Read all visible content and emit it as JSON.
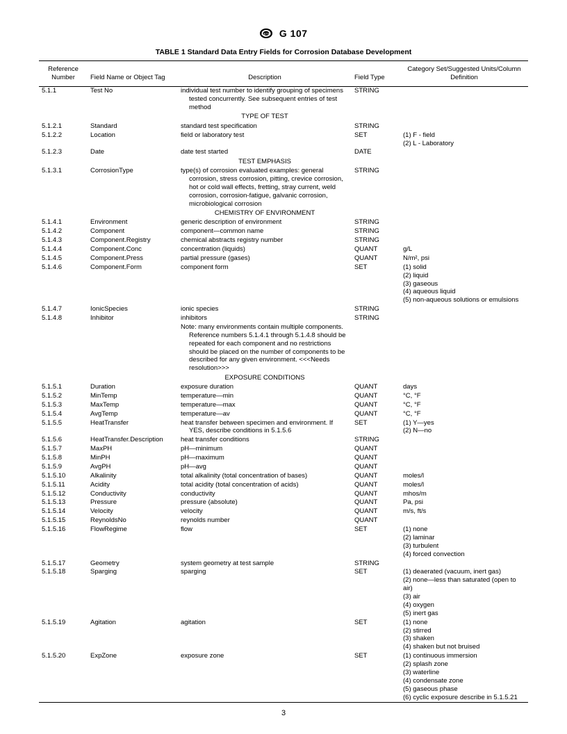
{
  "header": {
    "standard_code": "G 107"
  },
  "table": {
    "title": "TABLE 1  Standard Data Entry Fields for Corrosion Database Development",
    "columns": {
      "ref": "Reference Number",
      "name": "Field Name or Object Tag",
      "desc": "Description",
      "type": "Field Type",
      "cat": "Category Set/Suggested Units/Column Definition"
    },
    "sections": {
      "type_of_test": "TYPE OF TEST",
      "test_emphasis": "TEST EMPHASIS",
      "chem_env": "CHEMISTRY OF ENVIRONMENT",
      "exp_cond": "EXPOSURE CONDITIONS"
    },
    "rows": [
      {
        "ref": "5.1.1",
        "name": "Test No",
        "desc": "individual test number to identify grouping of specimens tested concurrently. See subsequent entries of test method",
        "type": "STRING",
        "cat": ""
      },
      {
        "section": "type_of_test"
      },
      {
        "ref": "5.1.2.1",
        "name": "Standard",
        "desc": "standard test specification",
        "type": "STRING",
        "cat": ""
      },
      {
        "ref": "5.1.2.2",
        "name": "Location",
        "desc": "field or laboratory test",
        "type": "SET",
        "cat": "(1) F - field\n(2) L - Laboratory"
      },
      {
        "ref": "5.1.2.3",
        "name": "Date",
        "desc": "date test started",
        "type": "DATE",
        "cat": ""
      },
      {
        "section": "test_emphasis"
      },
      {
        "ref": "5.1.3.1",
        "name": "CorrosionType",
        "desc": "type(s) of corrosion evaluated examples: general corrosion, stress corrosion, pitting, crevice corrosion, hot or cold wall effects, fretting, stray current, weld corrosion, corrosion-fatigue, galvanic corrosion, microbiological corrosion",
        "type": "STRING",
        "cat": ""
      },
      {
        "section": "chem_env"
      },
      {
        "ref": "5.1.4.1",
        "name": "Environment",
        "desc": "generic description of environment",
        "type": "STRING",
        "cat": ""
      },
      {
        "ref": "5.1.4.2",
        "name": "Component",
        "desc": "component—common name",
        "type": "STRING",
        "cat": ""
      },
      {
        "ref": "5.1.4.3",
        "name": "Component.Registry",
        "desc": "chemical abstracts registry number",
        "type": "STRING",
        "cat": ""
      },
      {
        "ref": "5.1.4.4",
        "name": "Component.Conc",
        "desc": "concentration (liquids)",
        "type": "QUANT",
        "cat": "g/L"
      },
      {
        "ref": "5.1.4.5",
        "name": "Component.Press",
        "desc": "partial pressure (gases)",
        "type": "QUANT",
        "cat": "N/m², psi"
      },
      {
        "ref": "5.1.4.6",
        "name": "Component.Form",
        "desc": "component form",
        "type": "SET",
        "cat": "(1) solid\n(2) liquid\n(3) gaseous\n(4) aqueous liquid\n(5) non-aqueous solutions or emulsions"
      },
      {
        "ref": "5.1.4.7",
        "name": "IonicSpecies",
        "desc": "ionic species",
        "type": "STRING",
        "cat": ""
      },
      {
        "ref": "5.1.4.8",
        "name": "Inhibitor",
        "desc": "inhibitors",
        "type": "STRING",
        "cat": ""
      },
      {
        "ref": "",
        "name": "",
        "desc": "Note: many environments contain multiple components. Reference numbers 5.1.4.1 through 5.1.4.8 should be repeated for each component and no restrictions should be placed on the number of components to be described for any given environment. <<<Needs resolution>>>",
        "type": "",
        "cat": ""
      },
      {
        "section": "exp_cond"
      },
      {
        "ref": "5.1.5.1",
        "name": "Duration",
        "desc": "exposure duration",
        "type": "QUANT",
        "cat": "days"
      },
      {
        "ref": "5.1.5.2",
        "name": "MinTemp",
        "desc": "temperature—min",
        "type": "QUANT",
        "cat": "°C, °F"
      },
      {
        "ref": "5.1.5.3",
        "name": "MaxTemp",
        "desc": "temperature—max",
        "type": "QUANT",
        "cat": "°C, °F"
      },
      {
        "ref": "5.1.5.4",
        "name": "AvgTemp",
        "desc": "temperature—av",
        "type": "QUANT",
        "cat": "°C, °F"
      },
      {
        "ref": "5.1.5.5",
        "name": "HeatTransfer",
        "desc": "heat transfer between specimen and environment. If YES, describe conditions in 5.1.5.6",
        "type": "SET",
        "cat": "(1) Y—yes\n(2) N—no"
      },
      {
        "ref": "5.1.5.6",
        "name": "HeatTransfer.Description",
        "desc": "heat transfer conditions",
        "type": "STRING",
        "cat": ""
      },
      {
        "ref": "5.1.5.7",
        "name": "MaxPH",
        "desc": "pH—minimum",
        "type": "QUANT",
        "cat": ""
      },
      {
        "ref": "5.1.5.8",
        "name": "MinPH",
        "desc": "pH—maximum",
        "type": "QUANT",
        "cat": ""
      },
      {
        "ref": "5.1.5.9",
        "name": "AvgPH",
        "desc": "pH—avg",
        "type": "QUANT",
        "cat": ""
      },
      {
        "ref": "5.1.5.10",
        "name": "Alkalinity",
        "desc": "total alkalinity (total concentration of bases)",
        "type": "QUANT",
        "cat": "moles/l"
      },
      {
        "ref": "5.1.5.11",
        "name": "Acidity",
        "desc": "total acidity (total concentration of acids)",
        "type": "QUANT",
        "cat": "moles/l"
      },
      {
        "ref": "5.1.5.12",
        "name": "Conductivity",
        "desc": "conductivity",
        "type": "QUANT",
        "cat": "mhos/m"
      },
      {
        "ref": "5.1.5.13",
        "name": "Pressure",
        "desc": "pressure (absolute)",
        "type": "QUANT",
        "cat": "Pa, psi"
      },
      {
        "ref": "5.1.5.14",
        "name": "Velocity",
        "desc": "velocity",
        "type": "QUANT",
        "cat": "m/s, ft/s"
      },
      {
        "ref": "5.1.5.15",
        "name": "ReynoldsNo",
        "desc": "reynolds number",
        "type": "QUANT",
        "cat": ""
      },
      {
        "ref": "5.1.5.16",
        "name": "FlowRegime",
        "desc": "flow",
        "type": "SET",
        "cat": "(1) none\n(2) laminar\n(3) turbulent\n(4) forced convection"
      },
      {
        "ref": "5.1.5.17",
        "name": "Geometry",
        "desc": "system geometry at test sample",
        "type": "STRING",
        "cat": ""
      },
      {
        "ref": "5.1.5.18",
        "name": "Sparging",
        "desc": "sparging",
        "type": "SET",
        "cat": "(1) deaerated (vacuum, inert gas)\n(2) none—less than saturated (open to air)\n(3) air\n(4) oxygen\n(5) inert gas"
      },
      {
        "ref": "5.1.5.19",
        "name": "Agitation",
        "desc": "agitation",
        "type": "SET",
        "cat": "(1) none\n(2) stirred\n(3) shaken\n(4) shaken but not bruised"
      },
      {
        "ref": "5.1.5.20",
        "name": "ExpZone",
        "desc": "exposure zone",
        "type": "SET",
        "cat": "(1) continuous immersion\n(2) splash zone\n(3) waterline\n(4) condensate zone\n(5) gaseous phase\n(6) cyclic exposure describe in 5.1.5.21"
      }
    ]
  },
  "page_number": "3"
}
